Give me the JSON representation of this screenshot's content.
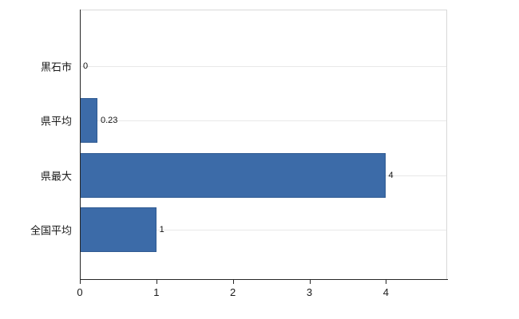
{
  "chart_data": {
    "type": "bar",
    "orientation": "horizontal",
    "title": "",
    "xlabel": "",
    "ylabel": "",
    "categories": [
      "黒石市",
      "県平均",
      "県最大",
      "全国平均"
    ],
    "values": [
      0,
      0.23,
      4,
      1
    ],
    "value_labels": [
      "0",
      "0.23",
      "4",
      "1"
    ],
    "xlim": [
      0,
      4.8
    ],
    "xticks": [
      0,
      1,
      2,
      3,
      4
    ],
    "xtick_labels": [
      "0",
      "1",
      "2",
      "3",
      "4"
    ],
    "grid": "horizontal-faint",
    "legend": "none",
    "colors": {
      "bar": "#3c6ba8",
      "bar_border": "#2f5a92",
      "axis": "#262626",
      "gridline": "#e8e8e8",
      "frame": "#d9d9d9",
      "background": "#ffffff"
    }
  }
}
